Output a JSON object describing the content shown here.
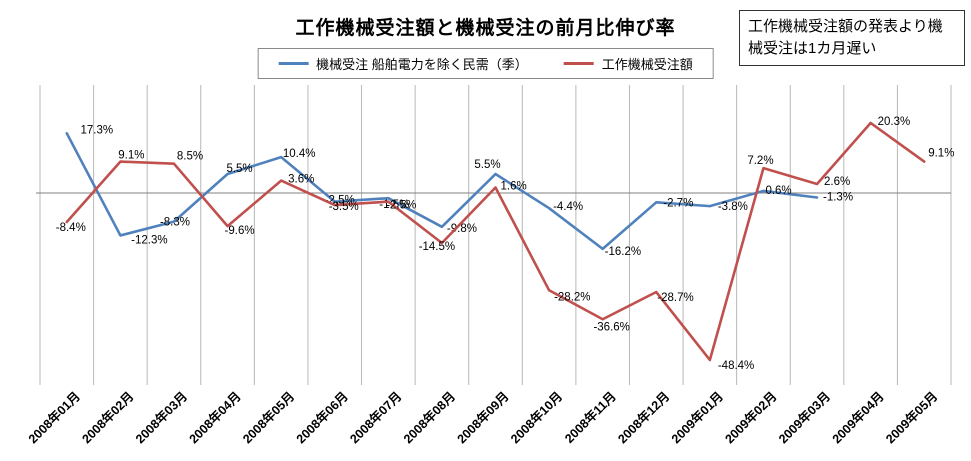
{
  "title": "工作機械受注額と機械受注の前月比伸び率",
  "note_box": {
    "text": "工作機械受注額の発表より機械受注は1カ月遅い"
  },
  "chart_data": {
    "type": "line",
    "title": "工作機械受注額と機械受注の前月比伸び率",
    "annotation": "工作機械受注額の発表より機械受注は1カ月遅い",
    "categories": [
      "2008年01月",
      "2008年02月",
      "2008年03月",
      "2008年04月",
      "2008年05月",
      "2008年06月",
      "2008年07月",
      "2008年08月",
      "2008年09月",
      "2008年10月",
      "2008年11月",
      "2008年12月",
      "2009年01月",
      "2009年02月",
      "2009年03月",
      "2009年04月",
      "2009年05月"
    ],
    "series": [
      {
        "name": "機械受注 船舶電力を除く民需（季）",
        "color": "#4F81BD",
        "values": [
          17.3,
          -12.3,
          -8.3,
          5.5,
          10.4,
          -2.5,
          -1.5,
          -9.8,
          5.5,
          -4.4,
          -16.2,
          -2.7,
          -3.8,
          0.6,
          -1.3,
          null,
          null
        ],
        "labels": [
          "17.3%",
          "-12.3%",
          "-8.3%",
          "5.5%",
          "10.4%",
          "-2.5%",
          "-1.5%",
          "-9.8%",
          "5.5%",
          "-4.4%",
          "-16.2%",
          "-2.7%",
          "-3.8%",
          "0.6%",
          "-1.3%",
          "",
          ""
        ]
      },
      {
        "name": "工作機械受注額",
        "color": "#C0504D",
        "values": [
          -8.4,
          9.1,
          8.5,
          -9.6,
          3.6,
          -3.5,
          -2.5,
          -14.5,
          1.6,
          -28.2,
          -36.6,
          -28.7,
          -48.4,
          7.2,
          2.6,
          20.3,
          9.1
        ],
        "labels": [
          "-8.4%",
          "9.1%",
          "8.5%",
          "-9.6%",
          "3.6%",
          "-3.5%",
          "-2.5%",
          "-14.5%",
          "1.6%",
          "-28.2%",
          "-36.6%",
          "-28.7%",
          "-48.4%",
          "7.2%",
          "2.6%",
          "20.3%",
          "9.1%"
        ]
      }
    ],
    "xlabel": "",
    "ylabel": "",
    "ylim": [
      -55,
      25
    ],
    "y_axis_tick_labels": "none",
    "grid": "vertical-only",
    "zero_line": true,
    "legend_position": "top-center"
  }
}
